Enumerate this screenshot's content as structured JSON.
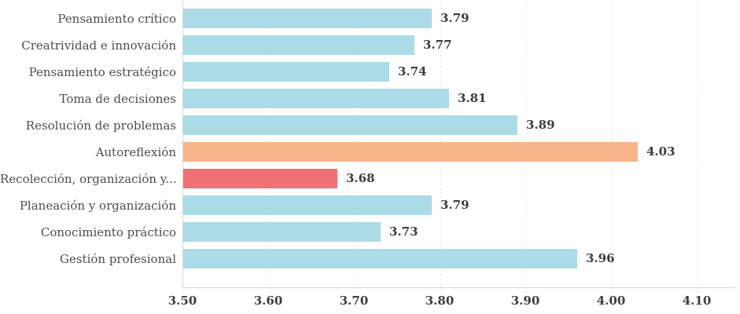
{
  "chart_data": {
    "type": "bar",
    "orientation": "horizontal",
    "title": "",
    "xlabel": "",
    "ylabel": "",
    "categories": [
      "Pensamiento crítico",
      "Creatrividad e innovación",
      "Pensamiento estratégico",
      "Toma de decisiones",
      "Resolución de problemas",
      "Autoreflexión",
      "Recolección, organización y...",
      "Planeación y organización",
      "Conocimiento práctico",
      "Gestión profesional"
    ],
    "values": [
      3.79,
      3.77,
      3.74,
      3.81,
      3.89,
      4.03,
      3.68,
      3.79,
      3.73,
      3.96
    ],
    "value_labels": [
      "3.79",
      "3.77",
      "3.74",
      "3.81",
      "3.89",
      "4.03",
      "3.68",
      "3.79",
      "3.73",
      "3.96"
    ],
    "bar_colors": [
      "#abdbe6",
      "#abdbe6",
      "#abdbe6",
      "#abdbe6",
      "#abdbe6",
      "#f9b68a",
      "#f07175",
      "#abdbe6",
      "#abdbe6",
      "#abdbe6"
    ],
    "xlim": [
      3.5,
      4.145
    ],
    "x_ticks": [
      "3.50",
      "3.60",
      "3.70",
      "3.80",
      "3.90",
      "4.00",
      "4.10"
    ],
    "x_tick_values": [
      3.5,
      3.6,
      3.7,
      3.8,
      3.9,
      4.0,
      4.1
    ],
    "legend": null,
    "grid": "vertical-dotted",
    "colors": {
      "bar_default": "#abdbe6",
      "bar_highlight_high": "#f9b68a",
      "bar_highlight_low": "#f07175",
      "axis_line": "#d6d6d6",
      "grid_line": "#d2d2d2",
      "category_text": "#4c4c55",
      "value_text": "#3c3c42"
    }
  }
}
